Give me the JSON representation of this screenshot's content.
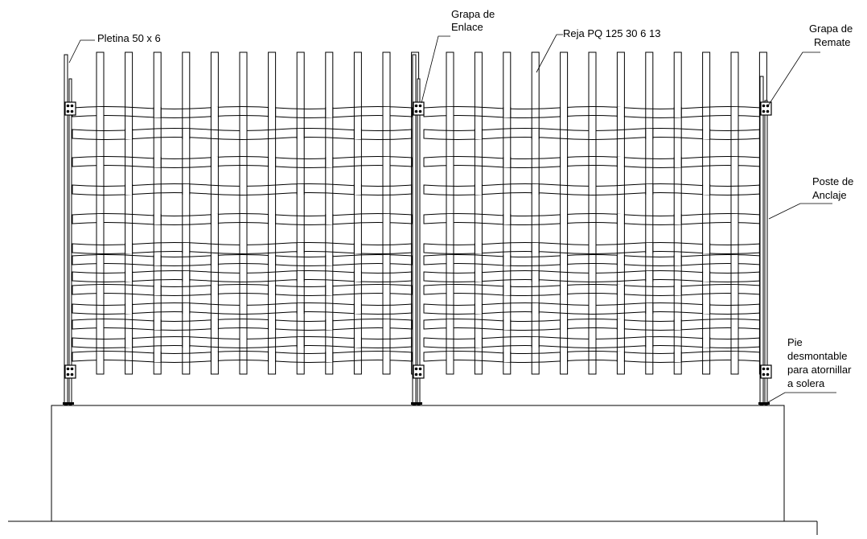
{
  "labels": {
    "pletina": "Pletina 50 x 6",
    "grapa_enlace_1": "Grapa de",
    "grapa_enlace_2": "Enlace",
    "reja": "Reja PQ 125 30 6 13",
    "grapa_remate_1": "Grapa de",
    "grapa_remate_2": "Remate",
    "poste_1": "Poste de",
    "poste_2": "Anclaje",
    "pie_1": "Pie",
    "pie_2": "desmontable",
    "pie_3": "para atornillar",
    "pie_4": "a solera"
  },
  "colors": {
    "ink": "#000000",
    "paper": "#ffffff"
  }
}
